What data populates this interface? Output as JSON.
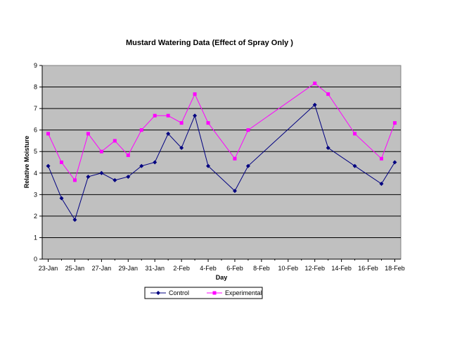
{
  "chart_data": {
    "type": "line",
    "title": "Mustard Watering Data (Effect of Spray Only )",
    "xlabel": "Day",
    "ylabel": "Relative Moisture",
    "ylim": [
      0,
      9
    ],
    "yticks": [
      0,
      1,
      2,
      3,
      4,
      5,
      6,
      7,
      8,
      9
    ],
    "xlim": [
      "23-Jan",
      "18-Feb"
    ],
    "xtick_labels": [
      "23-Jan",
      "25-Jan",
      "27-Jan",
      "29-Jan",
      "31-Jan",
      "2-Feb",
      "4-Feb",
      "6-Feb",
      "8-Feb",
      "10-Feb",
      "12-Feb",
      "14-Feb",
      "16-Feb",
      "18-Feb"
    ],
    "grid": true,
    "legend_position": "bottom",
    "plot_background": "#c0c0c0",
    "series": [
      {
        "name": "Control",
        "color": "#000080",
        "marker": "diamond",
        "x": [
          "23-Jan",
          "24-Jan",
          "25-Jan",
          "26-Jan",
          "27-Jan",
          "28-Jan",
          "29-Jan",
          "30-Jan",
          "31-Jan",
          "1-Feb",
          "2-Feb",
          "3-Feb",
          "4-Feb",
          "6-Feb",
          "7-Feb",
          "12-Feb",
          "13-Feb",
          "15-Feb",
          "17-Feb",
          "18-Feb"
        ],
        "values": [
          4.33,
          2.83,
          1.83,
          3.83,
          4.0,
          3.67,
          3.83,
          4.33,
          4.5,
          5.83,
          5.17,
          6.67,
          4.33,
          3.17,
          4.33,
          7.17,
          5.17,
          4.33,
          3.5,
          4.5
        ]
      },
      {
        "name": "Experimental",
        "color": "#ff00ff",
        "marker": "square",
        "x": [
          "23-Jan",
          "24-Jan",
          "25-Jan",
          "26-Jan",
          "27-Jan",
          "28-Jan",
          "29-Jan",
          "30-Jan",
          "31-Jan",
          "1-Feb",
          "2-Feb",
          "3-Feb",
          "4-Feb",
          "6-Feb",
          "7-Feb",
          "12-Feb",
          "13-Feb",
          "15-Feb",
          "17-Feb",
          "18-Feb"
        ],
        "values": [
          5.83,
          4.5,
          3.67,
          5.83,
          5.0,
          5.5,
          4.83,
          6.0,
          6.67,
          6.67,
          6.33,
          7.67,
          6.33,
          4.67,
          6.0,
          8.17,
          7.67,
          5.83,
          4.67,
          6.33
        ]
      }
    ]
  }
}
